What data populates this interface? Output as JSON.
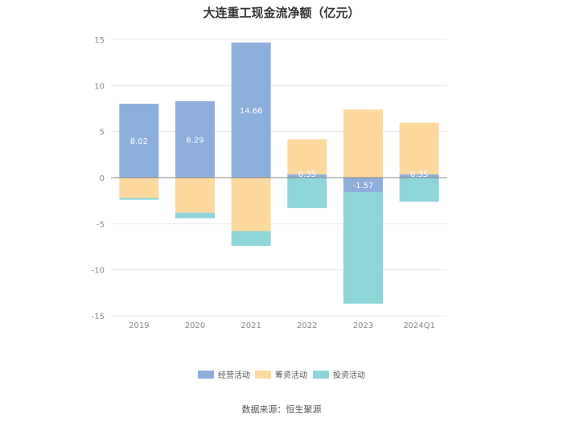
{
  "chart_data": {
    "type": "bar",
    "stacked": true,
    "title": "大连重工现金流净额（亿元）",
    "categories": [
      "2019",
      "2020",
      "2021",
      "2022",
      "2023",
      "2024Q1"
    ],
    "series": [
      {
        "name": "经营活动",
        "color": "#8eaedc",
        "values": [
          8.02,
          8.29,
          14.66,
          0.35,
          -1.57,
          0.35
        ]
      },
      {
        "name": "筹资活动",
        "color": "#fdd99f",
        "values": [
          -2.2,
          -3.8,
          -5.8,
          3.8,
          7.4,
          5.6
        ]
      },
      {
        "name": "投资活动",
        "color": "#8dd5d8",
        "values": [
          -0.2,
          -0.6,
          -1.6,
          -3.3,
          -12.1,
          -2.6
        ]
      }
    ],
    "data_labels": [
      "8.02",
      "8.29",
      "14.66",
      "0.35",
      "-1.57",
      "0.35"
    ],
    "ylim": [
      -15,
      15
    ],
    "yticks": [
      15,
      10,
      5,
      0,
      -5,
      -10,
      -15
    ],
    "grid": true,
    "legend": "bottom"
  },
  "source": "数据来源：恒生聚源"
}
